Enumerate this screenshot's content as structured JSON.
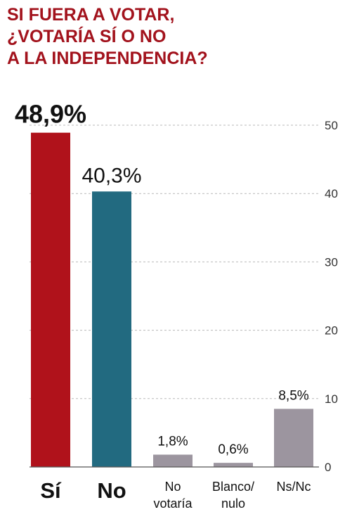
{
  "title_lines": [
    "SI FUERA A VOTAR,",
    "¿VOTARÍA SÍ O NO",
    "A LA INDEPENDENCIA?"
  ],
  "chart_data": {
    "type": "bar",
    "title": "SI FUERA A VOTAR, ¿VOTARÍA SÍ O NO A LA INDEPENDENCIA?",
    "categories": [
      {
        "lines": [
          "Sí"
        ],
        "emphasis": true
      },
      {
        "lines": [
          "No"
        ],
        "emphasis": true
      },
      {
        "lines": [
          "No",
          "votaría"
        ],
        "emphasis": false
      },
      {
        "lines": [
          "Blanco/",
          "nulo"
        ],
        "emphasis": false
      },
      {
        "lines": [
          "Ns/Nc"
        ],
        "emphasis": false
      }
    ],
    "values": [
      48.9,
      40.3,
      1.8,
      0.6,
      8.5
    ],
    "value_labels": [
      "48,9%",
      "40,3%",
      "1,8%",
      "0,6%",
      "8,5%"
    ],
    "colors": [
      "#b0121b",
      "#226a80",
      "#9c959f",
      "#9c959f",
      "#9c959f"
    ],
    "ylim": [
      0,
      50
    ],
    "yticks": [
      0,
      10,
      20,
      30,
      40,
      50
    ],
    "ytick_labels": [
      "0",
      "10",
      "20",
      "30",
      "40",
      "50"
    ],
    "y_axis_position": "right",
    "grid": "dashed horizontal",
    "xlabel": "",
    "ylabel": ""
  }
}
